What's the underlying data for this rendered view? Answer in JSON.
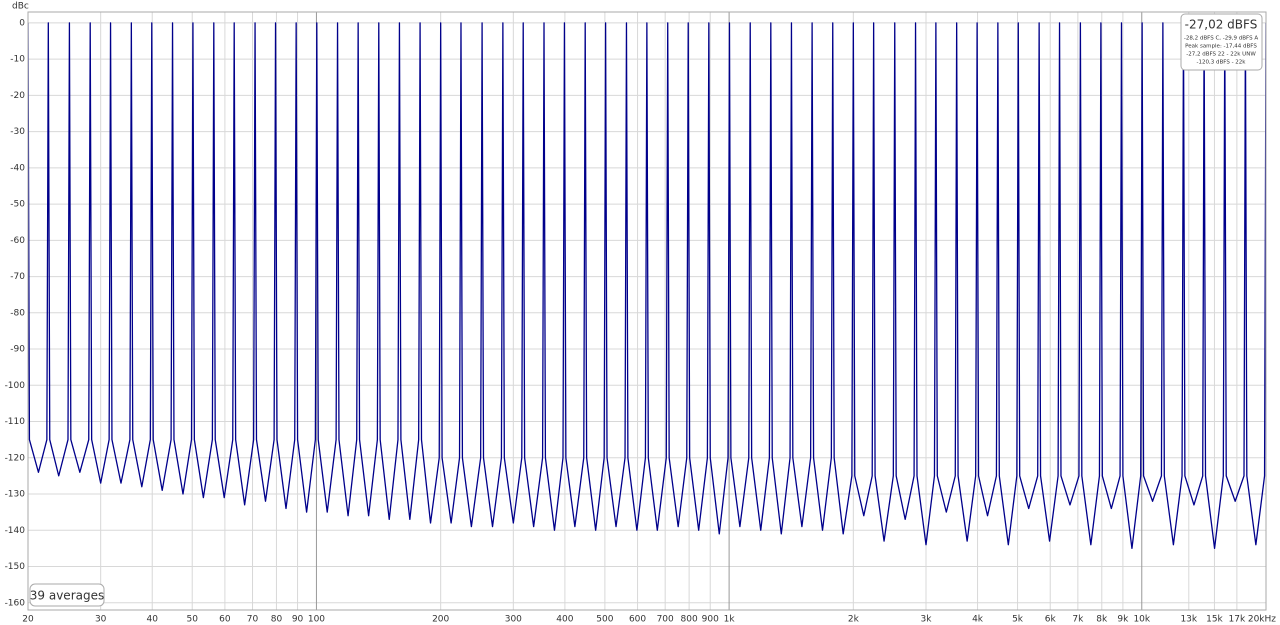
{
  "chart_data": {
    "type": "line",
    "y_label": "dBc",
    "x_log": true,
    "grid": true,
    "xlim": [
      20,
      20000
    ],
    "ylim": [
      -162,
      3
    ],
    "xticks": [
      20,
      30,
      40,
      50,
      60,
      70,
      80,
      90,
      100,
      200,
      300,
      400,
      500,
      600,
      700,
      800,
      900,
      {
        "value": 1000,
        "label": "1k"
      },
      {
        "value": 2000,
        "label": "2k"
      },
      {
        "value": 3000,
        "label": "3k"
      },
      {
        "value": 4000,
        "label": "4k"
      },
      {
        "value": 5000,
        "label": "5k"
      },
      {
        "value": 6000,
        "label": "6k"
      },
      {
        "value": 7000,
        "label": "7k"
      },
      {
        "value": 8000,
        "label": "8k"
      },
      {
        "value": 9000,
        "label": "9k"
      },
      {
        "value": 10000,
        "label": "10k"
      },
      {
        "value": 13000,
        "label": "13k"
      },
      {
        "value": 15000,
        "label": "15k"
      },
      {
        "value": 17000,
        "label": "17k"
      },
      {
        "value": 20000,
        "label": "20kHz"
      }
    ],
    "yticks": [
      0,
      -10,
      -20,
      -30,
      -40,
      -50,
      -60,
      -70,
      -80,
      -90,
      -100,
      -110,
      -120,
      -130,
      -140,
      -150,
      -160
    ],
    "annotations": [
      "-27,02 dBFS",
      "-28,2 dBFS C, -29,9 dBFS A",
      "Peak sample: -17,44 dBFS",
      "-27,2 dBFS 22 - 22k UNW",
      "-120,3 dBFS - 22k",
      "39 averages"
    ],
    "x": [
      20,
      20.16,
      21.2,
      22.22,
      22.4,
      22.58,
      23.74,
      25.0,
      25.2,
      25.4,
      26.71,
      28.07,
      28.3,
      28.53,
      30.0,
      31.45,
      31.7,
      31.95,
      33.6,
      35.32,
      35.6,
      35.88,
      37.74,
      39.58,
      39.9,
      40.22,
      42.29,
      44.44,
      44.8,
      45.16,
      47.49,
      49.8,
      50.2,
      50.6,
      53.21,
      55.95,
      56.4,
      56.85,
      59.78,
      62.69,
      63.2,
      63.71,
      66.99,
      70.43,
      71.0,
      71.57,
      75.26,
      78.96,
      79.6,
      80.24,
      84.38,
      88.59,
      89.3,
      90.01,
      94.66,
      99.4,
      100.2,
      101.0,
      106.2,
      111.6,
      112.5,
      113.4,
      119.3,
      125.2,
      126.2,
      127.2,
      133.8,
      140.5,
      141.6,
      142.7,
      150.1,
      157.6,
      158.9,
      160.2,
      168.4,
      176.9,
      178.3,
      179.7,
      189.0,
      198.4,
      200,
      201.6,
      212,
      222.2,
      224,
      225.8,
      237.4,
      250,
      252,
      254,
      267.1,
      280.7,
      283,
      285.3,
      300,
      314.5,
      317,
      319.5,
      336,
      353.2,
      356,
      358.8,
      377.4,
      395.8,
      399,
      402.2,
      422.9,
      444.4,
      448,
      451.6,
      474.9,
      498,
      502,
      506,
      532.1,
      559.5,
      564,
      568.5,
      597.8,
      626.9,
      632,
      637.1,
      669.9,
      704.3,
      710,
      715.7,
      752.6,
      789.6,
      796,
      802.4,
      843.8,
      885.9,
      893,
      900.1,
      946.6,
      994,
      1002,
      1010,
      1062,
      1116,
      1125,
      1134,
      1193,
      1252,
      1262,
      1272,
      1338,
      1405,
      1416,
      1427,
      1501,
      1576,
      1589,
      1602,
      1684,
      1769,
      1783,
      1797,
      1890,
      1984,
      2000,
      2016,
      2120,
      2222,
      2240,
      2258,
      2374,
      2500,
      2520,
      2540,
      2671,
      2807,
      2830,
      2853,
      3000,
      3145,
      3170,
      3195,
      3360,
      3532,
      3560,
      3588,
      3774,
      3958,
      3990,
      4022,
      4229,
      4444,
      4480,
      4516,
      4749,
      4980,
      5020,
      5060,
      5321,
      5595,
      5640,
      5685,
      5978,
      6269,
      6320,
      6371,
      6699,
      7043,
      7100,
      7157,
      7526,
      7896,
      7960,
      8024,
      8438,
      8859,
      8930,
      9001,
      9466,
      9940,
      10020,
      10100,
      10620,
      11160,
      11250,
      11340,
      11930,
      12520,
      12620,
      12720,
      13380,
      14050,
      14160,
      14270,
      15010,
      15760,
      15890,
      16020,
      16840,
      17690,
      17830,
      17970,
      18900,
      19840,
      20000
    ],
    "series": [
      {
        "color": "#00008b",
        "values": [
          0,
          -115,
          -124,
          -115,
          0,
          -115,
          -125,
          -115,
          0,
          -115,
          -124,
          -115,
          0,
          -115,
          -127,
          -115,
          0,
          -115,
          -127,
          -115,
          0,
          -115,
          -128,
          -115,
          0,
          -115,
          -129,
          -115,
          0,
          -115,
          -130,
          -115,
          0,
          -115,
          -131,
          -115,
          0,
          -115,
          -131,
          -115,
          0,
          -115,
          -133,
          -115,
          0,
          -115,
          -132,
          -115,
          0,
          -115,
          -134,
          -115,
          0,
          -115,
          -135,
          -115,
          0,
          -115,
          -135,
          -115,
          0,
          -115,
          -136,
          -115,
          0,
          -115,
          -136,
          -115,
          0,
          -115,
          -137,
          -115,
          0,
          -115,
          -137,
          -115,
          0,
          -115,
          -138,
          -120,
          0,
          -120,
          -138,
          -120,
          0,
          -120,
          -139,
          -120,
          0,
          -120,
          -139,
          -120,
          0,
          -120,
          -138,
          -120,
          0,
          -120,
          -139,
          -120,
          0,
          -120,
          -140,
          -120,
          0,
          -120,
          -139,
          -120,
          0,
          -120,
          -140,
          -120,
          0,
          -120,
          -139,
          -120,
          0,
          -120,
          -140,
          -120,
          0,
          -120,
          -140,
          -120,
          0,
          -120,
          -139,
          -120,
          0,
          -120,
          -140,
          -120,
          0,
          -120,
          -141,
          -120,
          0,
          -120,
          -139,
          -120,
          0,
          -120,
          -140,
          -120,
          0,
          -120,
          -141,
          -120,
          0,
          -120,
          -139,
          -120,
          0,
          -120,
          -140,
          -120,
          0,
          -120,
          -141,
          -125,
          0,
          -125,
          -136,
          -125,
          0,
          -125,
          -143,
          -125,
          0,
          -125,
          -137,
          -125,
          0,
          -125,
          -144,
          -125,
          0,
          -125,
          -135,
          -125,
          0,
          -125,
          -143,
          -125,
          0,
          -125,
          -136,
          -125,
          0,
          -125,
          -144,
          -125,
          0,
          -125,
          -134,
          -125,
          0,
          -125,
          -143,
          -125,
          0,
          -125,
          -133,
          -125,
          0,
          -125,
          -144,
          -125,
          0,
          -125,
          -134,
          -125,
          0,
          -125,
          -145,
          -125,
          0,
          -125,
          -132,
          -125,
          0,
          -125,
          -144,
          -125,
          0,
          -125,
          -133,
          -125,
          0,
          -125,
          -145,
          -125,
          0,
          -125,
          -132,
          -125,
          0,
          -125,
          -144,
          -125,
          0
        ]
      }
    ]
  }
}
